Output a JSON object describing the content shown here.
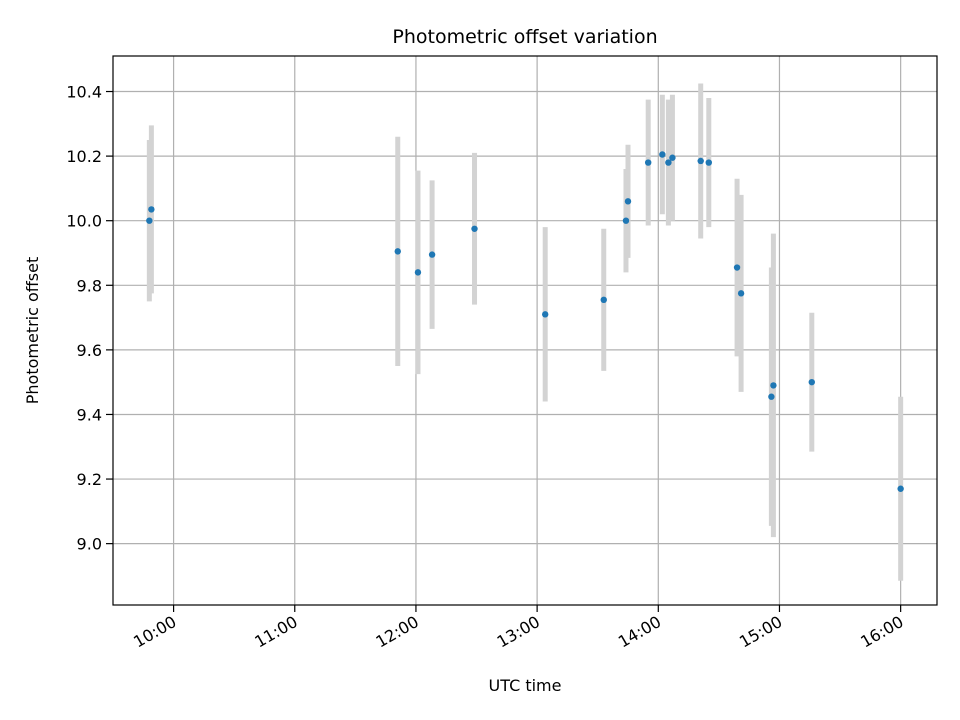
{
  "chart_data": {
    "type": "scatter",
    "title": "Photometric offset variation",
    "xlabel": "UTC time",
    "ylabel": "Photometric offset",
    "x_ticks": [
      "10:00",
      "11:00",
      "12:00",
      "13:00",
      "14:00",
      "15:00",
      "16:00"
    ],
    "y_ticks": [
      "9.0",
      "9.2",
      "9.4",
      "9.6",
      "9.8",
      "10.0",
      "10.2",
      "10.4"
    ],
    "xlim": [
      "09:30",
      "16:18"
    ],
    "ylim": [
      8.81,
      10.51
    ],
    "grid": true,
    "legend": "none",
    "marker_color": "#1f77b4",
    "errorbar_color": "#d3d3d3",
    "points": [
      {
        "x": "09:48",
        "y": 10.0,
        "yerr": 0.25
      },
      {
        "x": "09:49",
        "y": 10.035,
        "yerr": 0.26
      },
      {
        "x": "11:51",
        "y": 9.905,
        "yerr": 0.355
      },
      {
        "x": "12:01",
        "y": 9.84,
        "yerr": 0.315
      },
      {
        "x": "12:08",
        "y": 9.895,
        "yerr": 0.23
      },
      {
        "x": "12:29",
        "y": 9.975,
        "yerr": 0.235
      },
      {
        "x": "13:04",
        "y": 9.71,
        "yerr": 0.27
      },
      {
        "x": "13:33",
        "y": 9.755,
        "yerr": 0.22
      },
      {
        "x": "13:44",
        "y": 10.0,
        "yerr": 0.16
      },
      {
        "x": "13:45",
        "y": 10.06,
        "yerr": 0.175
      },
      {
        "x": "13:55",
        "y": 10.18,
        "yerr": 0.195
      },
      {
        "x": "14:02",
        "y": 10.205,
        "yerr": 0.185
      },
      {
        "x": "14:05",
        "y": 10.18,
        "yerr": 0.195
      },
      {
        "x": "14:07",
        "y": 10.195,
        "yerr": 0.195
      },
      {
        "x": "14:21",
        "y": 10.185,
        "yerr": 0.24
      },
      {
        "x": "14:25",
        "y": 10.18,
        "yerr": 0.2
      },
      {
        "x": "14:39",
        "y": 9.855,
        "yerr": 0.275
      },
      {
        "x": "14:41",
        "y": 9.775,
        "yerr": 0.305
      },
      {
        "x": "14:56",
        "y": 9.455,
        "yerr": 0.4
      },
      {
        "x": "14:57",
        "y": 9.49,
        "yerr": 0.47
      },
      {
        "x": "15:16",
        "y": 9.5,
        "yerr": 0.215
      },
      {
        "x": "16:00",
        "y": 9.17,
        "yerr": 0.285
      }
    ]
  }
}
